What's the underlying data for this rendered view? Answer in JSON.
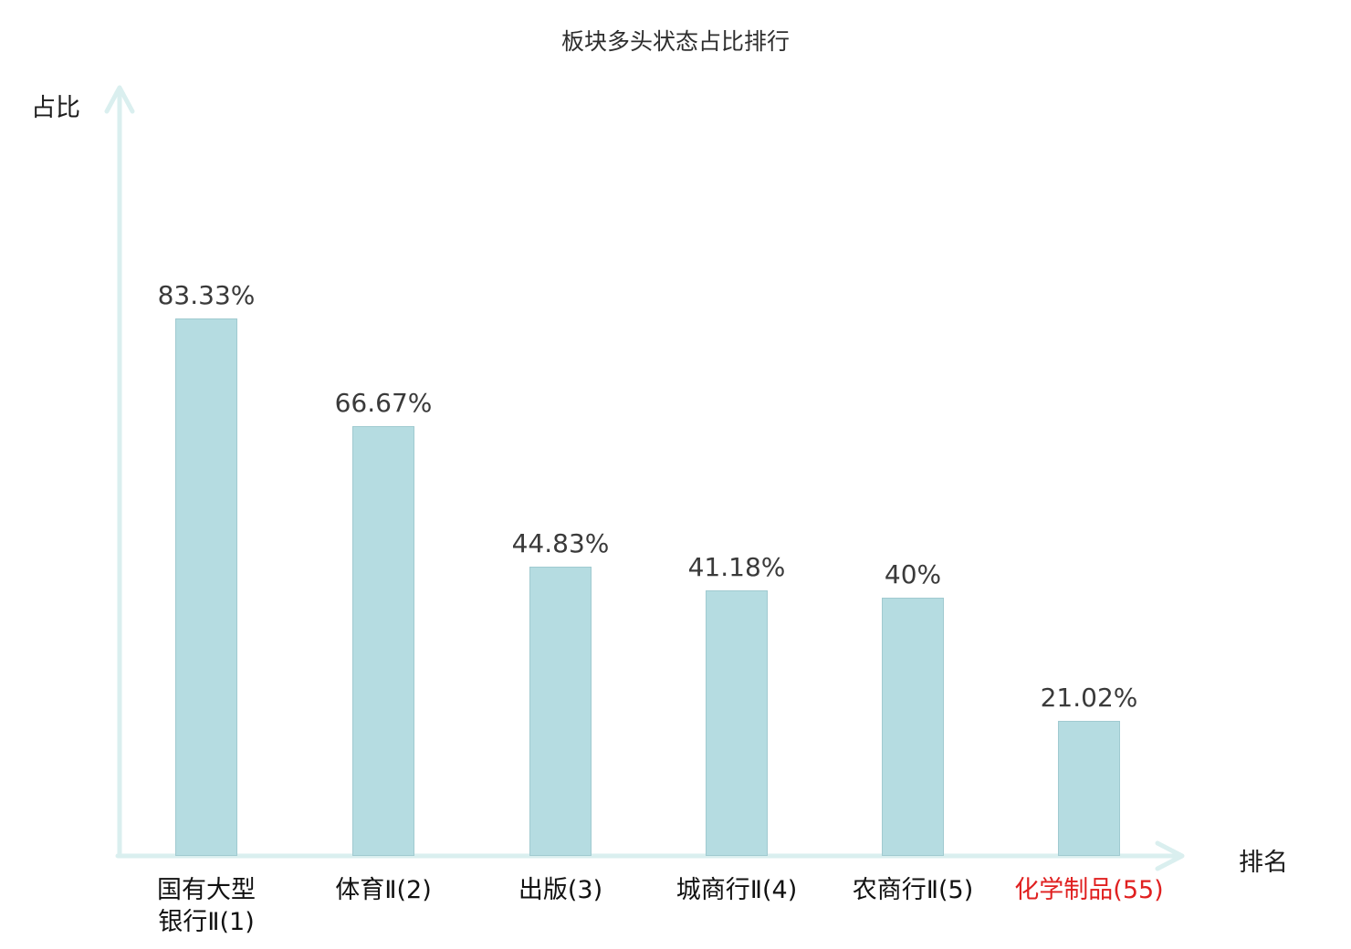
{
  "chart_data": {
    "type": "bar",
    "title": "板块多头状态占比排行",
    "xlabel": "排名",
    "ylabel": "占比",
    "categories": [
      "国有大型银行Ⅱ(1)",
      "体育Ⅱ(2)",
      "出版(3)",
      "城商行Ⅱ(4)",
      "农商行Ⅱ(5)",
      "化学制品(55)"
    ],
    "tick_labels": [
      "国有大型\n银行Ⅱ(1)",
      "体育Ⅱ(2)",
      "出版(3)",
      "城商行Ⅱ(4)",
      "农商行Ⅱ(5)",
      "化学制品(55)"
    ],
    "values": [
      83.33,
      66.67,
      44.83,
      41.18,
      40,
      21.02
    ],
    "value_labels": [
      "83.33%",
      "66.67%",
      "44.83%",
      "41.18%",
      "40%",
      "21.02%"
    ],
    "ylim": [
      0,
      100
    ],
    "grid": false,
    "legend": "none",
    "bar_color": "#b5dce1",
    "axis_color": "#daefef",
    "text_color": "#3a3a3a",
    "highlight_index": 5,
    "highlight_color": "#e02020"
  }
}
